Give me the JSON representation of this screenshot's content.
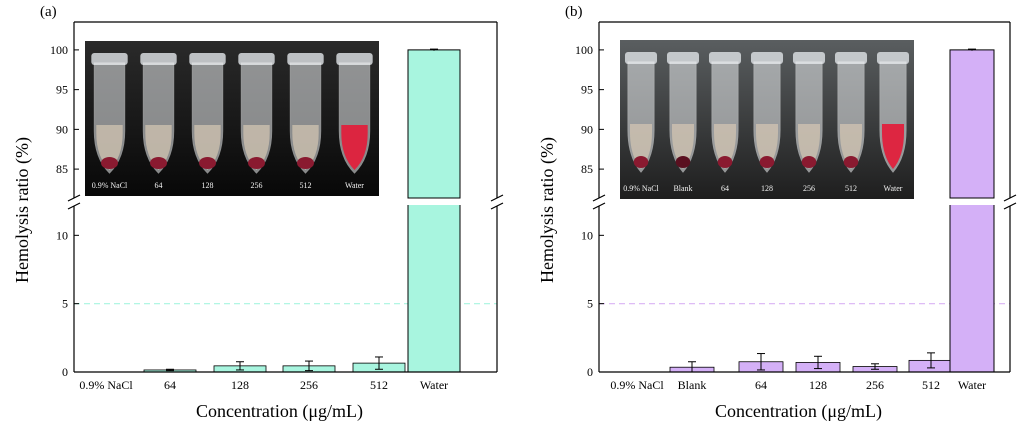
{
  "chart_data": [
    {
      "type": "bar",
      "panel_label": "(a)",
      "categories": [
        "0.9% NaCl",
        "64",
        "128",
        "256",
        "512",
        "Water"
      ],
      "values": [
        0.0,
        0.15,
        0.45,
        0.45,
        0.65,
        100.0
      ],
      "errors": [
        0.0,
        0.05,
        0.3,
        0.35,
        0.45,
        0.1
      ],
      "xlabel": "Concentration (μg/mL)",
      "ylabel": "Hemolysis ratio (%)",
      "y_break": {
        "lower": [
          0,
          12
        ],
        "upper": [
          83,
          102
        ]
      },
      "yticks_lower": [
        "0",
        "5",
        "10"
      ],
      "yticks_upper": [
        "85",
        "90",
        "95",
        "100"
      ],
      "threshold": 5,
      "bar_color": "#a8f5df",
      "threshold_color": "#a8f5df",
      "inset_photo_labels": [
        "0.9% NaCl",
        "64",
        "128",
        "256",
        "512",
        "Water"
      ]
    },
    {
      "type": "bar",
      "panel_label": "(b)",
      "categories": [
        "0.9% NaCl",
        "Blank",
        "64",
        "128",
        "256",
        "512",
        "Water"
      ],
      "values": [
        0.0,
        0.35,
        0.75,
        0.7,
        0.4,
        0.85,
        100.0
      ],
      "errors": [
        0.0,
        0.4,
        0.6,
        0.45,
        0.2,
        0.55,
        0.1
      ],
      "xlabel": "Concentration (μg/mL)",
      "ylabel": "Hemolysis ratio (%)",
      "y_break": {
        "lower": [
          0,
          12
        ],
        "upper": [
          83,
          102
        ]
      },
      "yticks_lower": [
        "0",
        "5",
        "10"
      ],
      "yticks_upper": [
        "85",
        "90",
        "95",
        "100"
      ],
      "threshold": 5,
      "bar_color": "#d4b0f7",
      "threshold_color": "#d9b3f5",
      "inset_photo_labels": [
        "0.9% NaCl",
        "Blank",
        "64",
        "128",
        "256",
        "512",
        "Water"
      ]
    }
  ]
}
